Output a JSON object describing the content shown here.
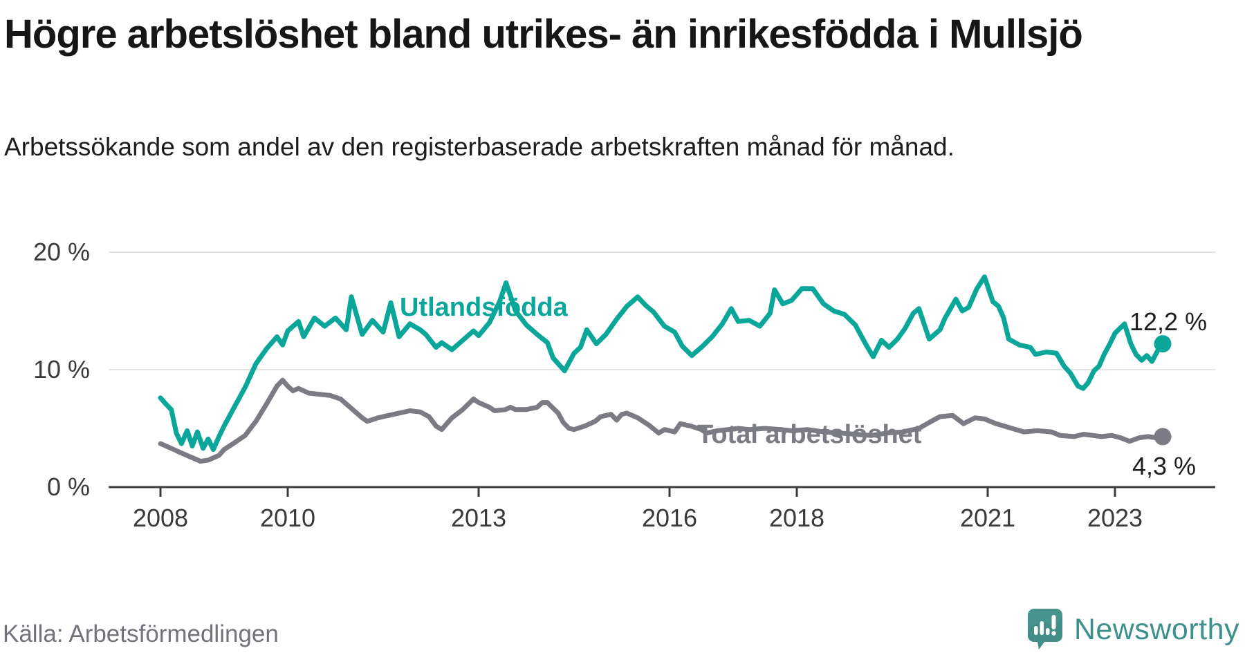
{
  "header": {
    "title": "Högre arbetslöshet bland utrikes- än inrikesfödda i Mullsjö",
    "subtitle": "Arbetssökande som andel av den registerbaserade arbetskraften månad för månad."
  },
  "footer": {
    "source": "Källa: Arbetsförmedlingen",
    "brand": "Newsworthy"
  },
  "colors": {
    "foreign_born_line": "#0ba69a",
    "total_line": "#7b7b83",
    "grid": "#e3e3e3",
    "axis": "#3a3a3a",
    "brand_teal": "#47938d",
    "brand_text": "#3e918b"
  },
  "chart_data": {
    "type": "line",
    "title": "Högre arbetslöshet bland utrikes- än inrikesfödda i Mullsjö",
    "xlabel": "",
    "ylabel": "Arbetssökande som andel av den registerbaserade arbetskraften",
    "x_range": [
      2007.9,
      2024.6
    ],
    "y_range": [
      0,
      21
    ],
    "grid": "horizontal",
    "legend_position": "inline-labels",
    "x_ticks": [
      2008,
      2010,
      2013,
      2016,
      2018,
      2021,
      2023
    ],
    "x_tick_labels": [
      "2008",
      "2010",
      "2013",
      "2016",
      "2018",
      "2021",
      "2023"
    ],
    "y_ticks": [
      0,
      10,
      20
    ],
    "y_tick_labels": [
      "0 %",
      "10 %",
      "20 %"
    ],
    "series": [
      {
        "name": "Utlandsfödda",
        "color": "#0ba69a",
        "end_value": 12.2,
        "end_label": "12,2 %",
        "points": [
          [
            2008.0,
            7.6
          ],
          [
            2008.08,
            7.1
          ],
          [
            2008.17,
            6.6
          ],
          [
            2008.25,
            4.6
          ],
          [
            2008.33,
            3.7
          ],
          [
            2008.42,
            4.8
          ],
          [
            2008.5,
            3.5
          ],
          [
            2008.58,
            4.7
          ],
          [
            2008.67,
            3.3
          ],
          [
            2008.75,
            4.1
          ],
          [
            2008.83,
            3.2
          ],
          [
            2008.92,
            4.3
          ],
          [
            2009.0,
            5.2
          ],
          [
            2009.17,
            6.9
          ],
          [
            2009.33,
            8.5
          ],
          [
            2009.5,
            10.5
          ],
          [
            2009.67,
            11.8
          ],
          [
            2009.83,
            12.8
          ],
          [
            2009.92,
            12.1
          ],
          [
            2010.0,
            13.3
          ],
          [
            2010.17,
            14.1
          ],
          [
            2010.25,
            12.8
          ],
          [
            2010.42,
            14.4
          ],
          [
            2010.58,
            13.7
          ],
          [
            2010.75,
            14.4
          ],
          [
            2010.92,
            13.4
          ],
          [
            2011.0,
            16.2
          ],
          [
            2011.17,
            13.0
          ],
          [
            2011.33,
            14.2
          ],
          [
            2011.5,
            13.2
          ],
          [
            2011.62,
            15.7
          ],
          [
            2011.75,
            12.8
          ],
          [
            2011.92,
            13.9
          ],
          [
            2012.08,
            13.4
          ],
          [
            2012.17,
            13.0
          ],
          [
            2012.33,
            11.9
          ],
          [
            2012.42,
            12.3
          ],
          [
            2012.58,
            11.7
          ],
          [
            2012.75,
            12.5
          ],
          [
            2012.92,
            13.3
          ],
          [
            2013.0,
            12.9
          ],
          [
            2013.17,
            14.0
          ],
          [
            2013.33,
            15.8
          ],
          [
            2013.43,
            17.4
          ],
          [
            2013.58,
            15.0
          ],
          [
            2013.75,
            13.8
          ],
          [
            2013.92,
            13.0
          ],
          [
            2014.08,
            12.3
          ],
          [
            2014.17,
            11.0
          ],
          [
            2014.35,
            9.9
          ],
          [
            2014.5,
            11.4
          ],
          [
            2014.6,
            11.9
          ],
          [
            2014.7,
            13.4
          ],
          [
            2014.85,
            12.2
          ],
          [
            2015.0,
            13.0
          ],
          [
            2015.17,
            14.3
          ],
          [
            2015.33,
            15.4
          ],
          [
            2015.5,
            16.2
          ],
          [
            2015.62,
            15.5
          ],
          [
            2015.75,
            14.9
          ],
          [
            2015.92,
            13.7
          ],
          [
            2016.08,
            13.2
          ],
          [
            2016.2,
            12.0
          ],
          [
            2016.35,
            11.2
          ],
          [
            2016.5,
            11.9
          ],
          [
            2016.67,
            12.8
          ],
          [
            2016.83,
            13.9
          ],
          [
            2016.97,
            15.2
          ],
          [
            2017.08,
            14.1
          ],
          [
            2017.25,
            14.2
          ],
          [
            2017.42,
            13.7
          ],
          [
            2017.58,
            14.8
          ],
          [
            2017.65,
            16.8
          ],
          [
            2017.78,
            15.6
          ],
          [
            2017.92,
            15.9
          ],
          [
            2018.08,
            16.9
          ],
          [
            2018.25,
            16.9
          ],
          [
            2018.42,
            15.6
          ],
          [
            2018.58,
            15.0
          ],
          [
            2018.75,
            14.7
          ],
          [
            2018.92,
            13.8
          ],
          [
            2019.08,
            12.2
          ],
          [
            2019.2,
            11.1
          ],
          [
            2019.33,
            12.5
          ],
          [
            2019.45,
            11.9
          ],
          [
            2019.58,
            12.6
          ],
          [
            2019.7,
            13.5
          ],
          [
            2019.83,
            14.8
          ],
          [
            2019.92,
            15.2
          ],
          [
            2020.08,
            12.6
          ],
          [
            2020.25,
            13.4
          ],
          [
            2020.33,
            14.4
          ],
          [
            2020.5,
            16.0
          ],
          [
            2020.6,
            15.0
          ],
          [
            2020.7,
            15.3
          ],
          [
            2020.83,
            16.9
          ],
          [
            2020.95,
            17.9
          ],
          [
            2021.08,
            15.8
          ],
          [
            2021.17,
            15.4
          ],
          [
            2021.25,
            14.4
          ],
          [
            2021.33,
            12.6
          ],
          [
            2021.5,
            12.1
          ],
          [
            2021.67,
            11.9
          ],
          [
            2021.75,
            11.3
          ],
          [
            2021.92,
            11.5
          ],
          [
            2022.08,
            11.4
          ],
          [
            2022.2,
            10.3
          ],
          [
            2022.3,
            9.7
          ],
          [
            2022.42,
            8.6
          ],
          [
            2022.5,
            8.4
          ],
          [
            2022.58,
            8.9
          ],
          [
            2022.67,
            9.9
          ],
          [
            2022.75,
            10.3
          ],
          [
            2022.83,
            11.3
          ],
          [
            2022.92,
            12.2
          ],
          [
            2023.0,
            13.1
          ],
          [
            2023.15,
            13.9
          ],
          [
            2023.25,
            12.2
          ],
          [
            2023.33,
            11.3
          ],
          [
            2023.42,
            10.8
          ],
          [
            2023.5,
            11.2
          ],
          [
            2023.58,
            10.7
          ],
          [
            2023.67,
            11.6
          ],
          [
            2023.75,
            12.2
          ]
        ]
      },
      {
        "name": "Total arbetslöshet",
        "color": "#7b7b83",
        "end_value": 4.3,
        "end_label": "4,3 %",
        "points": [
          [
            2008.0,
            3.7
          ],
          [
            2008.17,
            3.3
          ],
          [
            2008.33,
            2.9
          ],
          [
            2008.5,
            2.5
          ],
          [
            2008.63,
            2.2
          ],
          [
            2008.75,
            2.3
          ],
          [
            2008.92,
            2.7
          ],
          [
            2009.0,
            3.2
          ],
          [
            2009.17,
            3.8
          ],
          [
            2009.33,
            4.4
          ],
          [
            2009.5,
            5.6
          ],
          [
            2009.67,
            7.1
          ],
          [
            2009.83,
            8.6
          ],
          [
            2009.92,
            9.1
          ],
          [
            2010.0,
            8.6
          ],
          [
            2010.08,
            8.2
          ],
          [
            2010.17,
            8.4
          ],
          [
            2010.33,
            8.0
          ],
          [
            2010.5,
            7.9
          ],
          [
            2010.67,
            7.8
          ],
          [
            2010.83,
            7.5
          ],
          [
            2011.0,
            6.7
          ],
          [
            2011.17,
            5.9
          ],
          [
            2011.25,
            5.6
          ],
          [
            2011.42,
            5.9
          ],
          [
            2011.58,
            6.1
          ],
          [
            2011.75,
            6.3
          ],
          [
            2011.92,
            6.5
          ],
          [
            2012.08,
            6.4
          ],
          [
            2012.22,
            6.0
          ],
          [
            2012.33,
            5.2
          ],
          [
            2012.42,
            4.9
          ],
          [
            2012.58,
            5.9
          ],
          [
            2012.75,
            6.6
          ],
          [
            2012.92,
            7.5
          ],
          [
            2013.0,
            7.2
          ],
          [
            2013.17,
            6.8
          ],
          [
            2013.25,
            6.5
          ],
          [
            2013.42,
            6.6
          ],
          [
            2013.5,
            6.8
          ],
          [
            2013.58,
            6.6
          ],
          [
            2013.75,
            6.6
          ],
          [
            2013.92,
            6.8
          ],
          [
            2014.0,
            7.2
          ],
          [
            2014.08,
            7.2
          ],
          [
            2014.25,
            6.3
          ],
          [
            2014.33,
            5.5
          ],
          [
            2014.42,
            5.0
          ],
          [
            2014.5,
            4.9
          ],
          [
            2014.67,
            5.2
          ],
          [
            2014.83,
            5.6
          ],
          [
            2014.92,
            6.0
          ],
          [
            2015.08,
            6.2
          ],
          [
            2015.17,
            5.7
          ],
          [
            2015.25,
            6.2
          ],
          [
            2015.33,
            6.3
          ],
          [
            2015.5,
            5.9
          ],
          [
            2015.67,
            5.3
          ],
          [
            2015.83,
            4.6
          ],
          [
            2015.92,
            4.9
          ],
          [
            2016.08,
            4.7
          ],
          [
            2016.17,
            5.4
          ],
          [
            2016.33,
            5.2
          ],
          [
            2016.5,
            4.9
          ],
          [
            2016.58,
            4.6
          ],
          [
            2016.75,
            4.8
          ],
          [
            2016.92,
            4.9
          ],
          [
            2017.08,
            5.0
          ],
          [
            2017.25,
            4.9
          ],
          [
            2017.5,
            5.0
          ],
          [
            2017.75,
            4.9
          ],
          [
            2017.92,
            4.8
          ],
          [
            2018.17,
            4.9
          ],
          [
            2018.42,
            4.7
          ],
          [
            2018.67,
            4.6
          ],
          [
            2018.92,
            4.5
          ],
          [
            2019.17,
            4.4
          ],
          [
            2019.42,
            4.6
          ],
          [
            2019.67,
            4.7
          ],
          [
            2019.92,
            5.0
          ],
          [
            2020.08,
            5.5
          ],
          [
            2020.25,
            6.0
          ],
          [
            2020.45,
            6.1
          ],
          [
            2020.62,
            5.4
          ],
          [
            2020.8,
            5.9
          ],
          [
            2020.95,
            5.8
          ],
          [
            2021.13,
            5.4
          ],
          [
            2021.38,
            5.0
          ],
          [
            2021.57,
            4.7
          ],
          [
            2021.78,
            4.8
          ],
          [
            2022.0,
            4.7
          ],
          [
            2022.14,
            4.4
          ],
          [
            2022.36,
            4.3
          ],
          [
            2022.51,
            4.5
          ],
          [
            2022.65,
            4.4
          ],
          [
            2022.79,
            4.3
          ],
          [
            2022.95,
            4.4
          ],
          [
            2023.09,
            4.2
          ],
          [
            2023.23,
            3.9
          ],
          [
            2023.38,
            4.2
          ],
          [
            2023.52,
            4.3
          ],
          [
            2023.65,
            4.2
          ],
          [
            2023.75,
            4.3
          ]
        ]
      }
    ]
  }
}
